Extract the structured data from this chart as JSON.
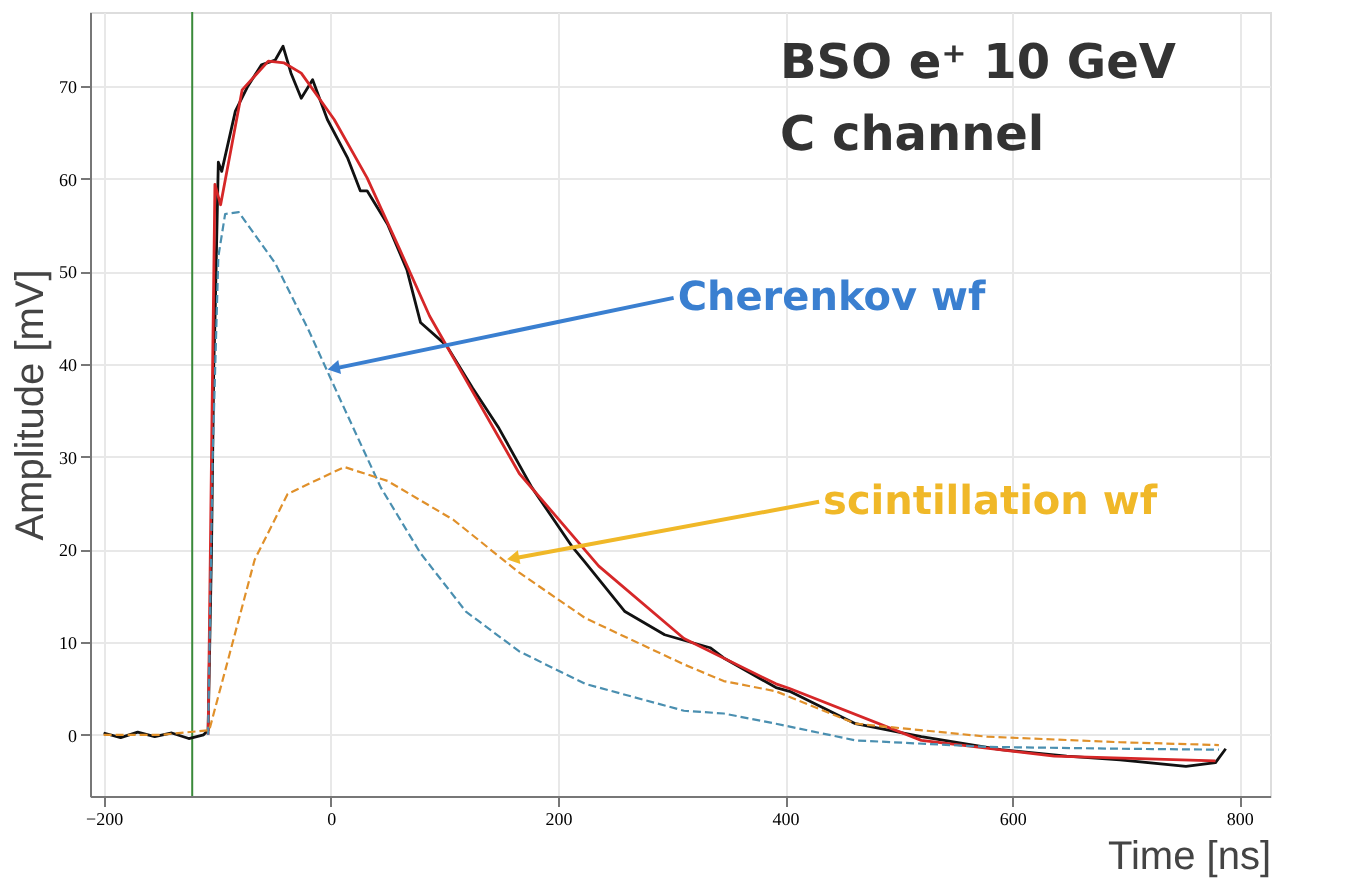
{
  "chart_data": {
    "type": "line",
    "xlabel": "Time [ns]",
    "ylabel": "Amplitude [mV]",
    "xlim": [
      -212,
      827
    ],
    "ylim": [
      -6.6,
      78
    ],
    "xticks": [
      -200,
      0,
      200,
      400,
      600,
      800
    ],
    "yticks": [
      0,
      10,
      20,
      30,
      40,
      50,
      60,
      70
    ],
    "grid": true,
    "series": [
      {
        "color": "#111111",
        "line_style": "solid",
        "x": [
          -200,
          -185,
          -170,
          -155,
          -140,
          -125,
          -112,
          -108,
          -105,
          -103,
          -102,
          -99,
          -96,
          -84,
          -73,
          -61,
          -49,
          -42,
          -35,
          -26,
          -16,
          -3,
          15,
          26,
          32,
          50,
          67,
          79,
          102,
          125,
          148,
          177,
          212,
          224,
          259,
          294,
          334,
          346,
          392,
          404,
          462,
          520,
          590,
          648,
          695,
          753,
          779,
          788
        ],
        "values": [
          0.2,
          -0.3,
          0.3,
          -0.2,
          0.2,
          -0.4,
          0,
          0.5,
          20,
          40,
          44.5,
          61.8,
          60.8,
          67.3,
          70,
          72.3,
          72.8,
          74.3,
          71.4,
          68.7,
          70.7,
          66.4,
          62.2,
          58.7,
          58.7,
          55.1,
          50.2,
          44.5,
          42,
          37.4,
          33.1,
          26.7,
          20.4,
          18.6,
          13.3,
          10.8,
          9.4,
          8.3,
          5.1,
          4.7,
          1.2,
          -0.2,
          -1.6,
          -2.3,
          -2.7,
          -3.4,
          -3,
          -1.5
        ]
      },
      {
        "color": "#d62728",
        "line_style": "solid",
        "x": [
          -108,
          -104,
          -102,
          -97,
          -78,
          -55,
          -41,
          -26,
          3,
          32,
          61,
          87,
          166,
          236,
          311,
          392,
          404,
          520,
          637,
          779
        ],
        "values": [
          0,
          40,
          59.4,
          57.2,
          69.6,
          72.7,
          72.5,
          71.4,
          66.4,
          60.1,
          52.3,
          45.2,
          28.2,
          18.2,
          10.4,
          5.5,
          5,
          -0.6,
          -2.3,
          -2.8
        ]
      },
      {
        "color": "#4a8fb0",
        "line_style": "dashed",
        "x": [
          -108,
          -104,
          -99,
          -93,
          -81,
          -49,
          -20,
          9,
          44,
          79,
          119,
          166,
          224,
          311,
          346,
          392,
          462,
          578,
          695,
          782
        ],
        "values": [
          0,
          30,
          51.6,
          56.2,
          56.4,
          50.9,
          43.8,
          36,
          26.7,
          19.6,
          13.3,
          9,
          5.5,
          2.6,
          2.3,
          1.2,
          -0.6,
          -1.3,
          -1.5,
          -1.6
        ]
      },
      {
        "color": "#e0902a",
        "line_style": "dashed",
        "x": [
          -200,
          -150,
          -107,
          -90,
          -67,
          -38,
          12,
          50,
          108,
          166,
          224,
          311,
          346,
          392,
          462,
          578,
          695,
          782
        ],
        "values": [
          0,
          0,
          0.5,
          8.3,
          18.9,
          26,
          28.9,
          27.4,
          23.2,
          17.5,
          12.6,
          7.6,
          5.8,
          4.7,
          1.2,
          -0.2,
          -0.8,
          -1.1
        ]
      }
    ],
    "ref_lines": [
      {
        "axis": "x",
        "value": -122,
        "color": "#3a8a3a"
      }
    ],
    "annotations": [
      "BSO e⁺  10 GeV",
      "C channel",
      {
        "text": "Cherenkov wf",
        "x": -1,
        "y": 39.6
      },
      {
        "text": "scintillation wf",
        "x": 157,
        "y": 19.1
      }
    ]
  }
}
